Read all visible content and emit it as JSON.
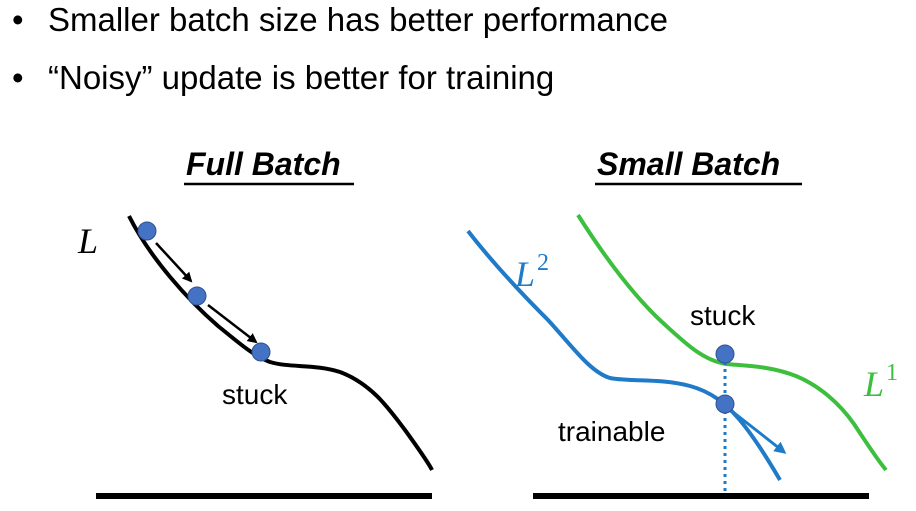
{
  "bullets": [
    "Smaller batch size has better performance",
    "“Noisy” update is better for training"
  ],
  "full_batch": {
    "title": "Full Batch",
    "curve_label": "L",
    "annotation": "stuck"
  },
  "small_batch": {
    "title": "Small Batch",
    "curve2_label": "L",
    "curve2_sup": "2",
    "curve1_label": "L",
    "curve1_sup": "1",
    "stuck_annotation": "stuck",
    "trainable_annotation": "trainable"
  },
  "colors": {
    "full_curve": "#000000",
    "ball": "#4472c4",
    "curve_l2": "#1f7ac8",
    "curve_l1": "#3cbf3c",
    "dotted_line": "#1f7ac8"
  }
}
